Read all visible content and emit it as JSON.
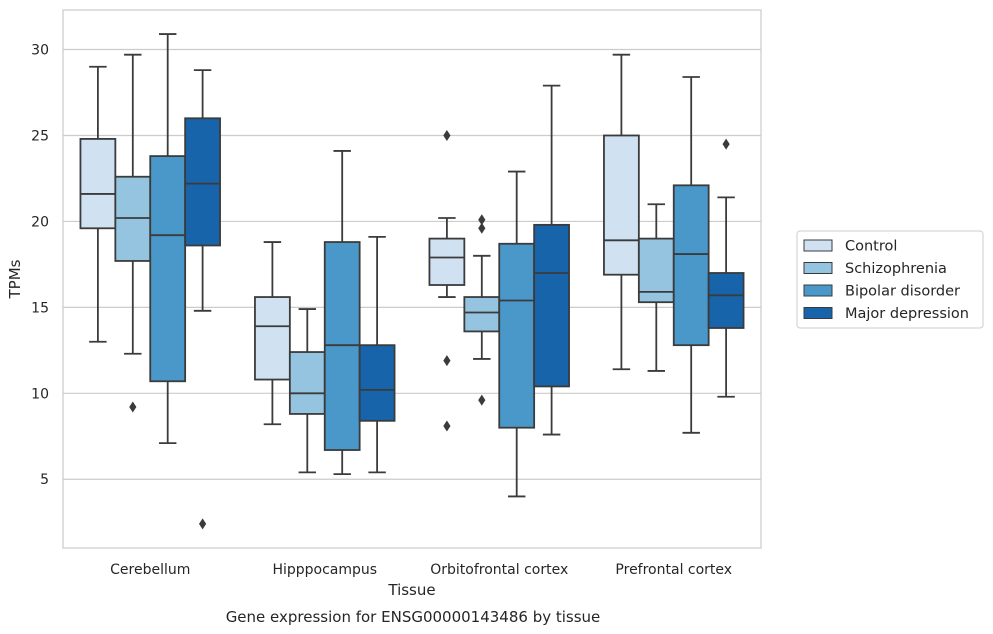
{
  "chart_data": {
    "type": "box",
    "xlabel": "Tissue",
    "ylabel": "TPMs",
    "caption": "Gene expression for ENSG00000143486 by tissue",
    "ylim": [
      1,
      32.3
    ],
    "yticks": [
      5,
      10,
      15,
      20,
      25,
      30
    ],
    "grid": "horizontal",
    "legend_position": "right",
    "categories": [
      "Cerebellum",
      "Hipppocampus",
      "Orbitofrontal cortex",
      "Prefrontal cortex"
    ],
    "series": [
      {
        "name": "Control",
        "color": "#d0e1f2",
        "boxes": [
          {
            "whislo": 13.0,
            "q1": 19.6,
            "med": 21.6,
            "q3": 24.8,
            "whishi": 29.0,
            "fliers": []
          },
          {
            "whislo": 8.2,
            "q1": 10.8,
            "med": 13.9,
            "q3": 15.6,
            "whishi": 18.8,
            "fliers": []
          },
          {
            "whislo": 15.6,
            "q1": 16.3,
            "med": 17.9,
            "q3": 19.0,
            "whishi": 20.2,
            "fliers": [
              25.0,
              11.9,
              8.1
            ]
          },
          {
            "whislo": 11.4,
            "q1": 16.9,
            "med": 18.9,
            "q3": 25.0,
            "whishi": 29.7,
            "fliers": []
          }
        ]
      },
      {
        "name": "Schizophrenia",
        "color": "#94c4df",
        "boxes": [
          {
            "whislo": 12.3,
            "q1": 17.7,
            "med": 20.2,
            "q3": 22.6,
            "whishi": 29.7,
            "fliers": [
              9.2
            ]
          },
          {
            "whislo": 5.4,
            "q1": 8.8,
            "med": 10.0,
            "q3": 12.4,
            "whishi": 14.9,
            "fliers": []
          },
          {
            "whislo": 12.0,
            "q1": 13.6,
            "med": 14.7,
            "q3": 15.6,
            "whishi": 18.0,
            "fliers": [
              20.1,
              19.6,
              9.6
            ]
          },
          {
            "whislo": 11.3,
            "q1": 15.3,
            "med": 15.9,
            "q3": 19.0,
            "whishi": 21.0,
            "fliers": []
          }
        ]
      },
      {
        "name": "Bipolar disorder",
        "color": "#4a98c9",
        "boxes": [
          {
            "whislo": 7.1,
            "q1": 10.7,
            "med": 19.2,
            "q3": 23.8,
            "whishi": 30.9,
            "fliers": []
          },
          {
            "whislo": 5.3,
            "q1": 6.7,
            "med": 12.8,
            "q3": 18.8,
            "whishi": 24.1,
            "fliers": []
          },
          {
            "whislo": 4.0,
            "q1": 8.0,
            "med": 15.4,
            "q3": 18.7,
            "whishi": 22.9,
            "fliers": []
          },
          {
            "whislo": 7.7,
            "q1": 12.8,
            "med": 18.1,
            "q3": 22.1,
            "whishi": 28.4,
            "fliers": []
          }
        ]
      },
      {
        "name": "Major depression",
        "color": "#1764ab",
        "boxes": [
          {
            "whislo": 14.8,
            "q1": 18.6,
            "med": 22.2,
            "q3": 26.0,
            "whishi": 28.8,
            "fliers": [
              2.4
            ]
          },
          {
            "whislo": 5.4,
            "q1": 8.4,
            "med": 10.2,
            "q3": 12.8,
            "whishi": 19.1,
            "fliers": []
          },
          {
            "whislo": 7.6,
            "q1": 10.4,
            "med": 17.0,
            "q3": 19.8,
            "whishi": 27.9,
            "fliers": []
          },
          {
            "whislo": 9.8,
            "q1": 13.8,
            "med": 15.7,
            "q3": 17.0,
            "whishi": 21.4,
            "fliers": [
              24.5
            ]
          }
        ]
      }
    ]
  }
}
